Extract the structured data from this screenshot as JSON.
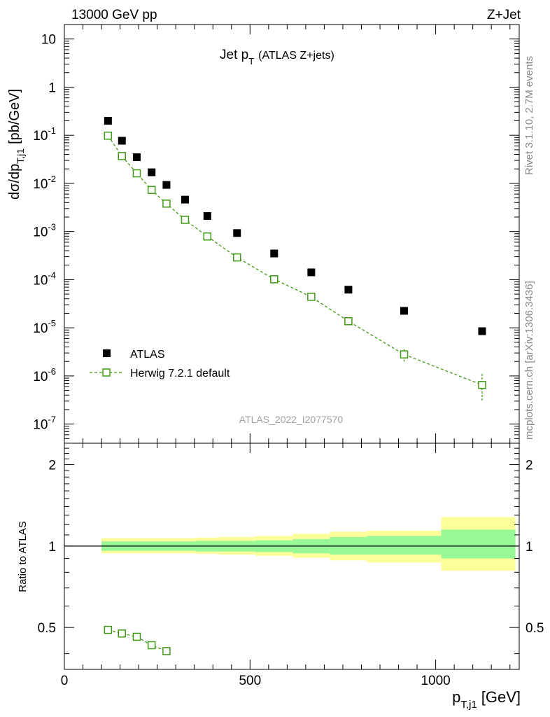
{
  "header": {
    "energy_label": "13000 GeV pp",
    "process_label": "Z+Jet"
  },
  "side_labels": {
    "rivet": "Rivet 3.1.10,  2.7M events",
    "mcplots": "mcplots.cern.ch [arXiv:1306.3436]"
  },
  "analysis_id": "ATLAS_2022_I2077570",
  "colors": {
    "data": "#000000",
    "mc": "#3f9a14",
    "band_inner": "#98f898",
    "band_outer": "#fdfd9a"
  },
  "chart_data": [
    {
      "type": "scatter",
      "panel": "main",
      "title_main": "Jet p",
      "title_sub": "T",
      "title_suffix": "(ATLAS Z+jets)",
      "ylabel_main": "dσ/dp",
      "ylabel_sub": "T,j1",
      "ylabel_suffix": "[pb/GeV]",
      "yscale": "log",
      "xlim": [
        0,
        1225
      ],
      "ylim": [
        4e-08,
        20
      ],
      "yticks": [
        {
          "v": 1e-07,
          "base": "10",
          "exp": "-7"
        },
        {
          "v": 1e-06,
          "base": "10",
          "exp": "-6"
        },
        {
          "v": 1e-05,
          "base": "10",
          "exp": "-5"
        },
        {
          "v": 0.0001,
          "base": "10",
          "exp": "-4"
        },
        {
          "v": 0.001,
          "base": "10",
          "exp": "-3"
        },
        {
          "v": 0.01,
          "base": "10",
          "exp": "-2"
        },
        {
          "v": 0.1,
          "base": "10",
          "exp": "-1"
        },
        {
          "v": 1,
          "base": "1",
          "exp": ""
        },
        {
          "v": 10,
          "base": "10",
          "exp": ""
        }
      ],
      "legend": {
        "position": "lower-left",
        "entries": [
          {
            "label": "ATLAS",
            "marker": "filled-square"
          },
          {
            "label": "Herwig 7.2.1 default",
            "marker": "open-square-dashed"
          }
        ]
      },
      "series": [
        {
          "name": "ATLAS",
          "x": [
            117.5,
            155,
            195,
            235,
            275,
            325,
            385,
            465,
            565,
            665,
            765,
            915,
            1125
          ],
          "y": [
            0.2,
            0.077,
            0.035,
            0.017,
            0.0093,
            0.0046,
            0.0021,
            0.00093,
            0.00035,
            0.000142,
            6.2e-05,
            2.25e-05,
            8.5e-06
          ]
        },
        {
          "name": "Herwig 7.2.1 default",
          "x": [
            117.5,
            155,
            195,
            235,
            275,
            325,
            385,
            465,
            565,
            665,
            765,
            915,
            1125
          ],
          "y": [
            0.098,
            0.037,
            0.0162,
            0.0073,
            0.0038,
            0.00175,
            0.00079,
            0.00029,
            0.000102,
            4.4e-05,
            1.37e-05,
            2.8e-06,
            6.5e-07
          ],
          "yerr_low": [
            0,
            0,
            0,
            0,
            0,
            0,
            0,
            0,
            0,
            0,
            0,
            8e-07,
            3.6e-07
          ],
          "yerr_high": [
            0,
            0,
            0,
            0,
            0,
            0,
            0,
            0,
            0,
            0,
            0,
            8e-07,
            4.5e-07
          ]
        }
      ]
    },
    {
      "type": "line",
      "panel": "ratio",
      "ylabel": "Ratio to ATLAS",
      "xlabel_main": "p",
      "xlabel_sub": "T,j1",
      "xlabel_suffix": "[GeV]",
      "xlim": [
        0,
        1225
      ],
      "ylim": [
        0.35,
        2.4
      ],
      "yscale": "log",
      "xticks": [
        0,
        500,
        1000
      ],
      "yticks": [
        0.5,
        1,
        2
      ],
      "reference_line": 1,
      "bands": [
        {
          "x0": 100,
          "x1": 135,
          "inner": [
            0.96,
            1.04
          ],
          "outer": [
            0.94,
            1.07
          ]
        },
        {
          "x0": 135,
          "x1": 175,
          "inner": [
            0.96,
            1.04
          ],
          "outer": [
            0.94,
            1.07
          ]
        },
        {
          "x0": 175,
          "x1": 215,
          "inner": [
            0.96,
            1.04
          ],
          "outer": [
            0.94,
            1.07
          ]
        },
        {
          "x0": 215,
          "x1": 255,
          "inner": [
            0.96,
            1.04
          ],
          "outer": [
            0.94,
            1.07
          ]
        },
        {
          "x0": 255,
          "x1": 295,
          "inner": [
            0.96,
            1.04
          ],
          "outer": [
            0.94,
            1.07
          ]
        },
        {
          "x0": 295,
          "x1": 355,
          "inner": [
            0.96,
            1.04
          ],
          "outer": [
            0.94,
            1.07
          ]
        },
        {
          "x0": 355,
          "x1": 415,
          "inner": [
            0.955,
            1.045
          ],
          "outer": [
            0.935,
            1.075
          ]
        },
        {
          "x0": 415,
          "x1": 515,
          "inner": [
            0.955,
            1.045
          ],
          "outer": [
            0.93,
            1.08
          ]
        },
        {
          "x0": 515,
          "x1": 615,
          "inner": [
            0.95,
            1.05
          ],
          "outer": [
            0.92,
            1.09
          ]
        },
        {
          "x0": 615,
          "x1": 715,
          "inner": [
            0.94,
            1.06
          ],
          "outer": [
            0.905,
            1.11
          ]
        },
        {
          "x0": 715,
          "x1": 815,
          "inner": [
            0.93,
            1.08
          ],
          "outer": [
            0.885,
            1.13
          ]
        },
        {
          "x0": 815,
          "x1": 1015,
          "inner": [
            0.93,
            1.09
          ],
          "outer": [
            0.87,
            1.14
          ]
        },
        {
          "x0": 1015,
          "x1": 1215,
          "inner": [
            0.9,
            1.15
          ],
          "outer": [
            0.81,
            1.28
          ]
        }
      ],
      "series": [
        {
          "name": "Herwig 7.2.1 default",
          "x": [
            117.5,
            155,
            195,
            235,
            275
          ],
          "y": [
            0.49,
            0.475,
            0.462,
            0.43,
            0.409
          ]
        }
      ]
    }
  ]
}
